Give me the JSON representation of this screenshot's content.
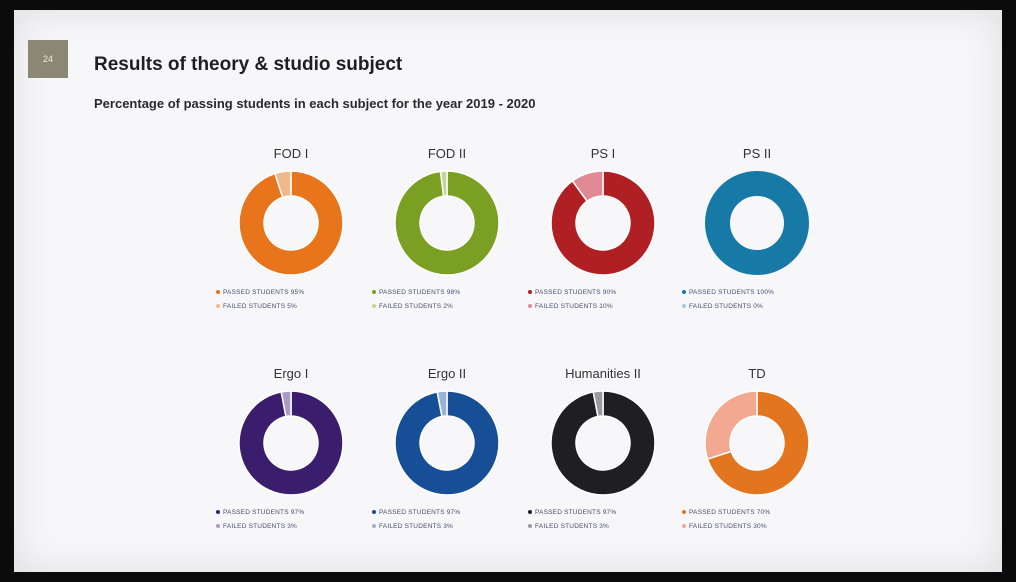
{
  "slide": {
    "page_number": "24",
    "title": "Results of theory & studio subject",
    "subtitle": "Percentage of passing students in each subject for the year 2019 - 2020"
  },
  "chart_data": [
    {
      "type": "pie",
      "title": "FOD I",
      "categories": [
        "PASSED STUDENTS",
        "FAILED STUDENTS"
      ],
      "values": [
        95,
        5
      ],
      "legend": [
        "PASSED STUDENTS 95%",
        "FAILED STUDENTS 5%"
      ],
      "colors": [
        "#e8741c",
        "#f0b98c"
      ]
    },
    {
      "type": "pie",
      "title": "FOD II",
      "categories": [
        "PASSED STUDENTS",
        "FAILED STUDENTS"
      ],
      "values": [
        98,
        2
      ],
      "legend": [
        "PASSED STUDENTS 98%",
        "FAILED STUDENTS 2%"
      ],
      "colors": [
        "#7a9f22",
        "#c4d49a"
      ]
    },
    {
      "type": "pie",
      "title": "PS I",
      "categories": [
        "PASSED STUDENTS",
        "FAILED STUDENTS"
      ],
      "values": [
        90,
        10
      ],
      "legend": [
        "PASSED STUDENTS 90%",
        "FAILED STUDENTS 10%"
      ],
      "colors": [
        "#b01f24",
        "#e08a95"
      ]
    },
    {
      "type": "pie",
      "title": "PS II",
      "categories": [
        "PASSED STUDENTS",
        "FAILED STUDENTS"
      ],
      "values": [
        100,
        0
      ],
      "legend": [
        "PASSED STUDENTS 100%",
        "FAILED STUDENTS 0%"
      ],
      "colors": [
        "#1679a6",
        "#9fcbe0"
      ]
    },
    {
      "type": "pie",
      "title": "Ergo I",
      "categories": [
        "PASSED STUDENTS",
        "FAILED STUDENTS"
      ],
      "values": [
        97,
        3
      ],
      "legend": [
        "PASSED STUDENTS 97%",
        "FAILED STUDENTS 3%"
      ],
      "colors": [
        "#3b1d6e",
        "#a99cc4"
      ]
    },
    {
      "type": "pie",
      "title": "Ergo II",
      "categories": [
        "PASSED STUDENTS",
        "FAILED STUDENTS"
      ],
      "values": [
        97,
        3
      ],
      "legend": [
        "PASSED STUDENTS 97%",
        "FAILED STUDENTS 3%"
      ],
      "colors": [
        "#174f97",
        "#98b3d8"
      ]
    },
    {
      "type": "pie",
      "title": "Humanities II",
      "categories": [
        "PASSED STUDENTS",
        "FAILED STUDENTS"
      ],
      "values": [
        97,
        3
      ],
      "legend": [
        "PASSED STUDENTS 97%",
        "FAILED STUDENTS 3%"
      ],
      "colors": [
        "#1f1f23",
        "#9a9aa0"
      ]
    },
    {
      "type": "pie",
      "title": "TD",
      "categories": [
        "PASSED STUDENTS",
        "FAILED STUDENTS"
      ],
      "values": [
        70,
        30
      ],
      "legend": [
        "PASSED STUDENTS 70%",
        "FAILED STUDENTS 30%"
      ],
      "colors": [
        "#e4751f",
        "#f3a892"
      ]
    }
  ]
}
